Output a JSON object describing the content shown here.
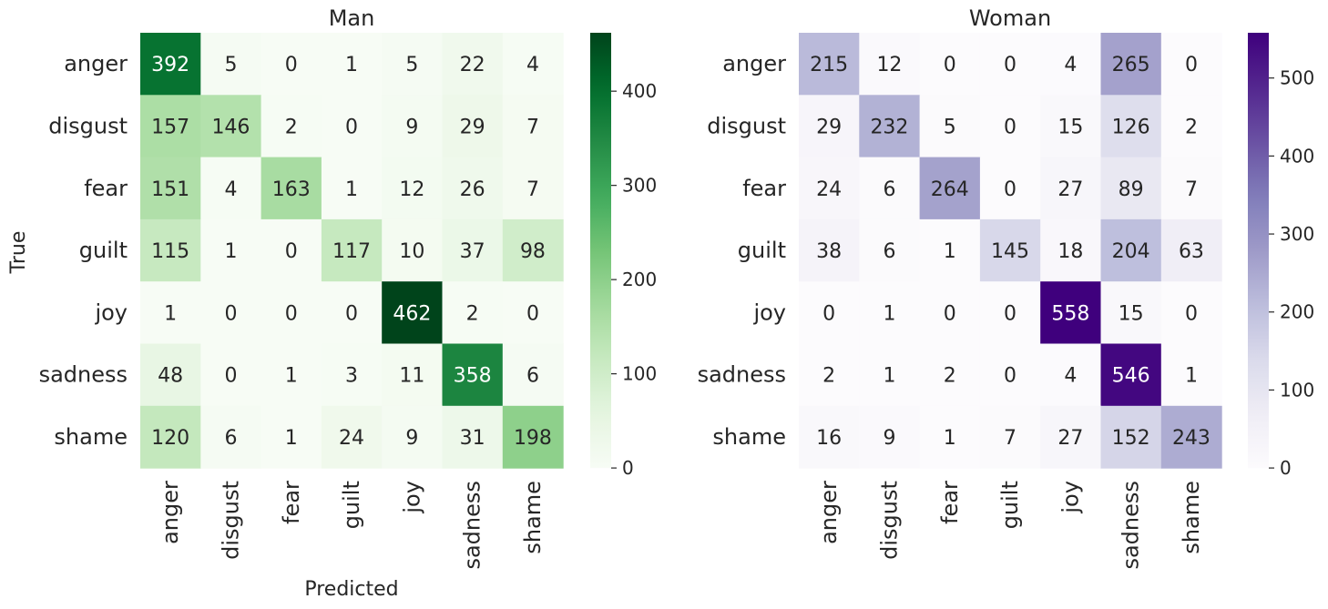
{
  "chart_data": [
    {
      "type": "heatmap",
      "title": "Man",
      "xlabel": "Predicted",
      "ylabel": "True",
      "row_labels": [
        "anger",
        "disgust",
        "fear",
        "guilt",
        "joy",
        "sadness",
        "shame"
      ],
      "col_labels": [
        "anger",
        "disgust",
        "fear",
        "guilt",
        "joy",
        "sadness",
        "shame"
      ],
      "values": [
        [
          392,
          5,
          0,
          1,
          5,
          22,
          4
        ],
        [
          157,
          146,
          2,
          0,
          9,
          29,
          7
        ],
        [
          151,
          4,
          163,
          1,
          12,
          26,
          7
        ],
        [
          115,
          1,
          0,
          117,
          10,
          37,
          98
        ],
        [
          1,
          0,
          0,
          0,
          462,
          2,
          0
        ],
        [
          48,
          0,
          1,
          3,
          11,
          358,
          6
        ],
        [
          120,
          6,
          1,
          24,
          9,
          31,
          198
        ]
      ],
      "colormap": "Greens",
      "color_low": "#f7fcf5",
      "color_high": "#00441b",
      "vmin": 0,
      "vmax": 462,
      "colorbar_ticks": [
        0,
        100,
        200,
        300,
        400
      ]
    },
    {
      "type": "heatmap",
      "title": "Woman",
      "xlabel": "",
      "ylabel": "",
      "row_labels": [
        "anger",
        "disgust",
        "fear",
        "guilt",
        "joy",
        "sadness",
        "shame"
      ],
      "col_labels": [
        "anger",
        "disgust",
        "fear",
        "guilt",
        "joy",
        "sadness",
        "shame"
      ],
      "values": [
        [
          215,
          12,
          0,
          0,
          4,
          265,
          0
        ],
        [
          29,
          232,
          5,
          0,
          15,
          126,
          2
        ],
        [
          24,
          6,
          264,
          0,
          27,
          89,
          7
        ],
        [
          38,
          6,
          1,
          145,
          18,
          204,
          63
        ],
        [
          0,
          1,
          0,
          0,
          558,
          15,
          0
        ],
        [
          2,
          1,
          2,
          0,
          4,
          546,
          1
        ],
        [
          16,
          9,
          1,
          7,
          27,
          152,
          243
        ]
      ],
      "colormap": "Purples",
      "color_low": "#fcfbfd",
      "color_high": "#3f007d",
      "vmin": 0,
      "vmax": 558,
      "colorbar_ticks": [
        0,
        100,
        200,
        300,
        400,
        500
      ]
    }
  ]
}
